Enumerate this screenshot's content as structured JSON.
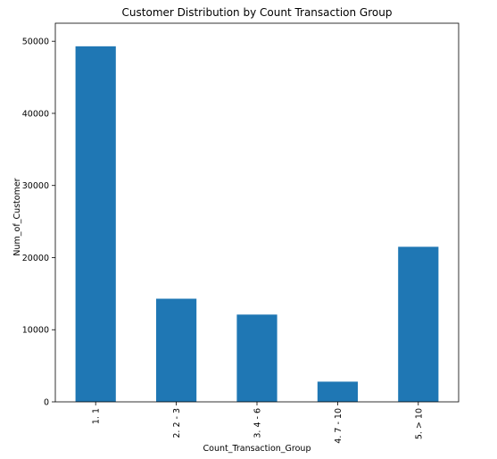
{
  "chart_data": {
    "type": "bar",
    "title": "Customer Distribution by Count Transaction Group",
    "xlabel": "Count_Transaction_Group",
    "ylabel": "Num_of_Customer",
    "categories": [
      "1. 1",
      "2. 2 - 3",
      "3. 4 - 6",
      "4. 7 - 10",
      "5. > 10"
    ],
    "values": [
      49300,
      14300,
      12100,
      2800,
      21500
    ],
    "ylim": [
      0,
      52500
    ],
    "yticks": [
      0,
      10000,
      20000,
      30000,
      40000,
      50000
    ],
    "grid": false,
    "legend": "none",
    "bar_color": "#1f77b4"
  }
}
